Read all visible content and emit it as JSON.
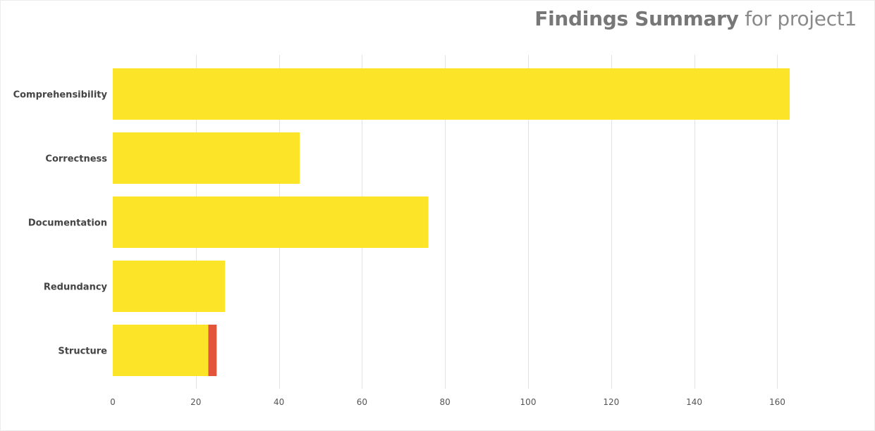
{
  "header": {
    "title_strong": "Findings Summary",
    "title_light": "for project1"
  },
  "colors": {
    "yellow": "#fce528",
    "red": "#e2553a",
    "grid": "#e3e3e3"
  },
  "chart_data": {
    "type": "bar",
    "orientation": "horizontal",
    "stacked": true,
    "categories": [
      "Comprehensibility",
      "Correctness",
      "Documentation",
      "Redundancy",
      "Structure"
    ],
    "series": [
      {
        "color": "#fce528",
        "values": [
          163,
          45,
          76,
          27,
          23
        ]
      },
      {
        "color": "#e2553a",
        "values": [
          0,
          0,
          0,
          0,
          2
        ]
      }
    ],
    "x_ticks": [
      0,
      20,
      40,
      60,
      80,
      100,
      120,
      140,
      160
    ],
    "xlim": [
      0,
      160
    ],
    "grid": true,
    "legend": "none"
  }
}
